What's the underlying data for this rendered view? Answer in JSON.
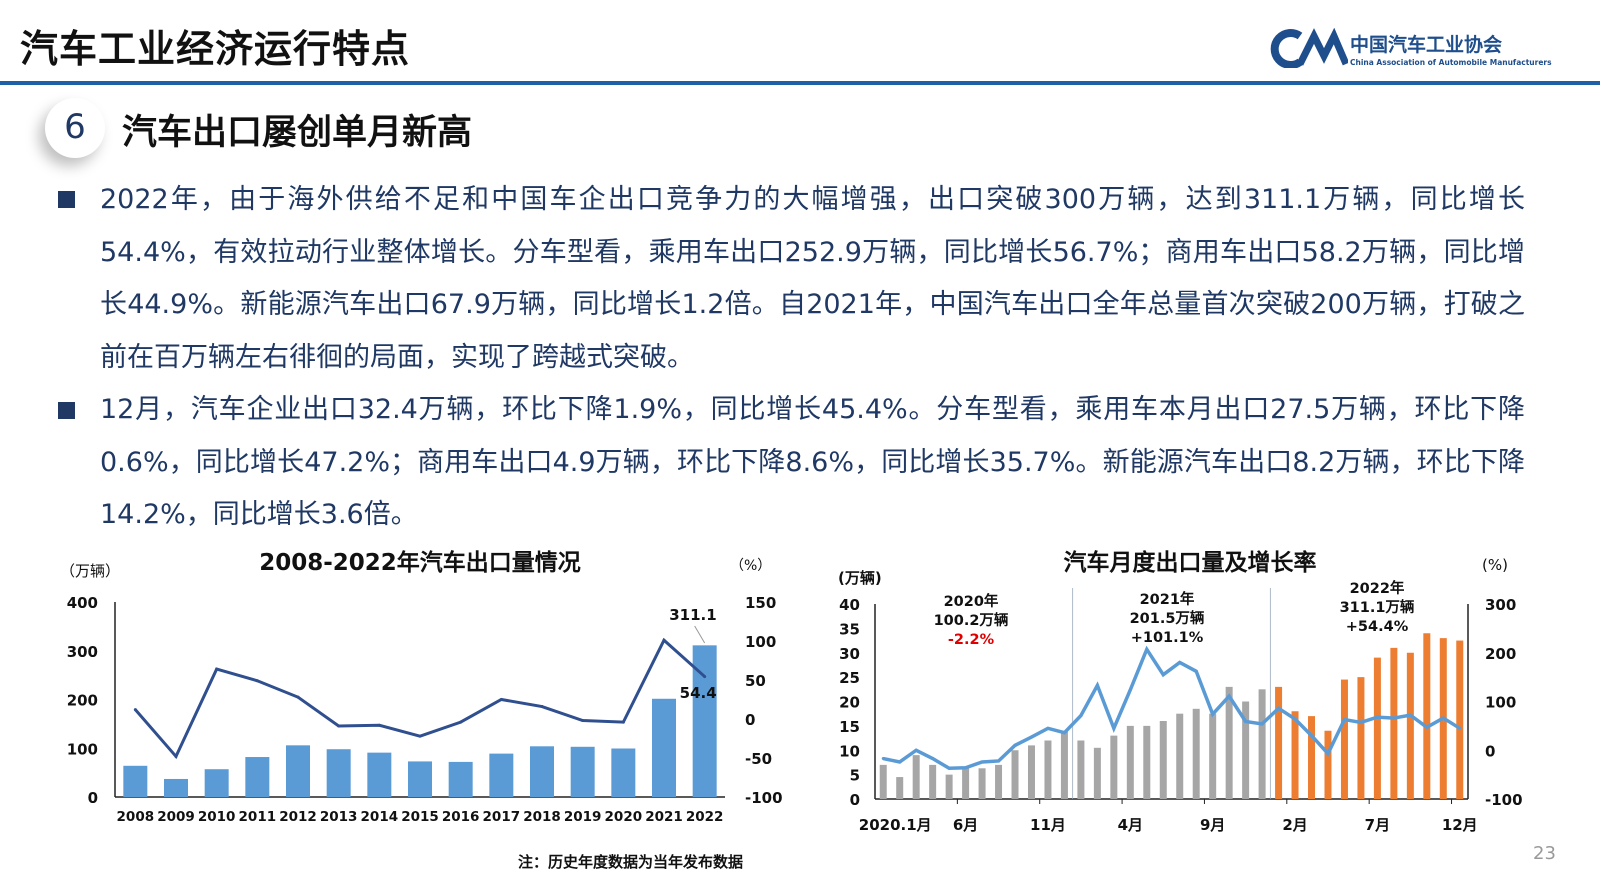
{
  "header": {
    "title": "汽车工业经济运行特点",
    "logo_cn": "中国汽车工业协会",
    "logo_en": "China Association of Automobile Manufacturers",
    "accent": "#1f5fa8"
  },
  "section": {
    "number": "6",
    "title": "汽车出口屡创单月新高"
  },
  "bullets": [
    "2022年，由于海外供给不足和中国车企出口竞争力的大幅增强，出口突破300万辆，达到311.1万辆，同比增长54.4%，有效拉动行业整体增长。分车型看，乘用车出口252.9万辆，同比增长56.7%；商用车出口58.2万辆，同比增长44.9%。新能源汽车出口67.9万辆，同比增长1.2倍。自2021年，中国汽车出口全年总量首次突破200万辆，打破之前在百万辆左右徘徊的局面，实现了跨越式突破。",
    "12月，汽车企业出口32.4万辆，环比下降1.9%，同比增长45.4%。分车型看，乘用车本月出口27.5万辆，环比下降0.6%，同比增长47.2%；商用车出口4.9万辆，环比下降8.6%，同比增长35.7%。新能源汽车出口8.2万辆，环比下降14.2%，同比增长3.6倍。"
  ],
  "chart_data": [
    {
      "type": "bar+line",
      "title": "2008-2022年汽车出口量情况",
      "ylabel": "（万辆）",
      "y2label": "（%）",
      "ylim": [
        0,
        400
      ],
      "yticks": [
        "400",
        "300",
        "200",
        "100",
        "0"
      ],
      "y2lim": [
        -100,
        150
      ],
      "y2ticks": [
        "150",
        "100",
        "50",
        "0",
        "-50",
        "-100"
      ],
      "categories": [
        "2008",
        "2009",
        "2010",
        "2011",
        "2012",
        "2013",
        "2014",
        "2015",
        "2016",
        "2017",
        "2018",
        "2019",
        "2020",
        "2021",
        "2022"
      ],
      "series": [
        {
          "kind": "bar",
          "axis": "left",
          "color": "#5b9bd5",
          "values": [
            64,
            37,
            57,
            82,
            106,
            98,
            91,
            73,
            72,
            89,
            104,
            103,
            99.5,
            201.5,
            311.1
          ]
        },
        {
          "kind": "line",
          "axis": "right",
          "color": "#2f4f8f",
          "values": [
            12,
            -48,
            64,
            49,
            28,
            -9,
            -8,
            -22,
            -4,
            25,
            16,
            -2,
            -4,
            101,
            54.4
          ]
        }
      ],
      "labels": [
        "311.1",
        "54.4"
      ],
      "grid": false
    },
    {
      "type": "bar+line",
      "title": "汽车月度出口量及增长率",
      "ylabel": "(万辆)",
      "y2label": "(%)",
      "ylim": [
        0,
        40
      ],
      "yticks": [
        "40",
        "35",
        "30",
        "25",
        "20",
        "15",
        "10",
        "5",
        "0"
      ],
      "y2lim": [
        -100,
        300
      ],
      "y2ticks": [
        "300",
        "200",
        "100",
        "0",
        "-100"
      ],
      "xticks": [
        "2020.1月",
        "6月",
        "11月",
        "4月",
        "9月",
        "2月",
        "7月",
        "12月"
      ],
      "series": [
        {
          "kind": "bar",
          "axis": "left",
          "colors": {
            "2020": "#a6a6a6",
            "2021": "#a6a6a6",
            "2022": "#ed7d31"
          },
          "values": [
            7,
            4.5,
            9,
            7,
            5,
            6.5,
            6.3,
            7,
            10,
            11,
            12,
            14,
            12,
            10.5,
            13,
            15,
            15,
            16,
            17.5,
            18.5,
            17.5,
            23,
            20,
            22.5,
            23,
            18,
            17,
            14,
            24.5,
            25,
            29,
            31,
            30,
            34,
            33,
            32.5
          ]
        },
        {
          "kind": "line",
          "axis": "right",
          "color": "#5b9bd5",
          "values": [
            -17,
            -24,
            0,
            -17,
            -37,
            -36,
            -24,
            -22,
            10,
            27,
            45,
            36,
            71,
            133,
            45,
            124,
            207,
            155,
            180,
            162,
            74,
            111,
            59,
            54,
            86,
            64,
            30,
            -7,
            63,
            57,
            68,
            66,
            72,
            47,
            66,
            45
          ]
        }
      ],
      "annotations": [
        {
          "year": "2020年",
          "total": "100.2万辆",
          "growth": "-2.2%",
          "growth_color": "#e00000"
        },
        {
          "year": "2021年",
          "total": "201.5万辆",
          "growth": "+101.1%",
          "growth_color": "#111111"
        },
        {
          "year": "2022年",
          "total": "311.1万辆",
          "growth": "+54.4%",
          "growth_color": "#111111"
        }
      ],
      "grid": false
    }
  ],
  "footer": {
    "note": "注：历史年度数据为当年发布数据",
    "page": "23"
  }
}
